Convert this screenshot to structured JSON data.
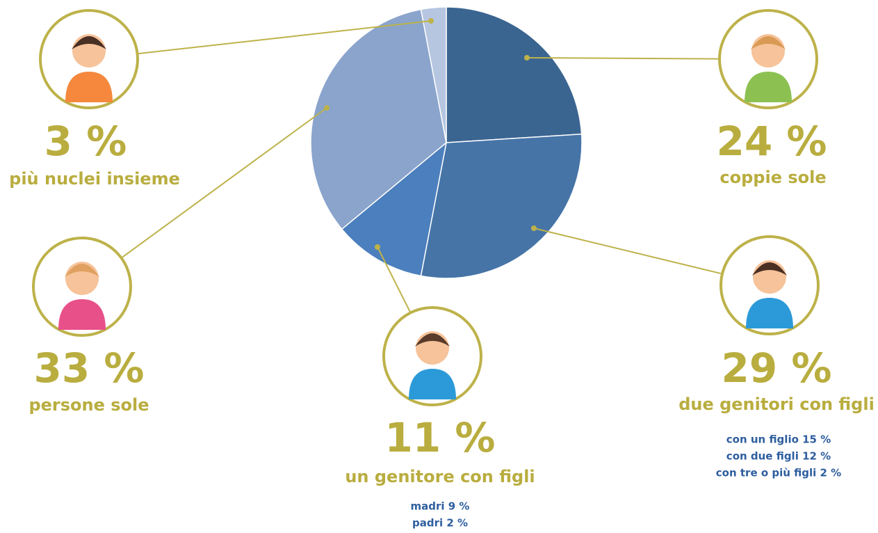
{
  "chart_data": {
    "type": "pie",
    "categories": [
      "coppie sole",
      "due genitori con figli",
      "un genitore con figli",
      "persone sole",
      "più nuclei insieme"
    ],
    "values": [
      24,
      29,
      11,
      33,
      3
    ],
    "value_labels": [
      "24 %",
      "29 %",
      "11 %",
      "33 %",
      "3 %"
    ],
    "colors": [
      "#3b6591",
      "#4674a7",
      "#4c7fbd",
      "#8aa4cc",
      "#b6c6e1"
    ],
    "value_details": [
      null,
      [
        "con un figlio 15 %",
        "con due figli 12 %",
        "con tre o più figli 2 %"
      ],
      [
        "madri 9 %",
        "padri 2 %"
      ],
      null,
      null
    ]
  }
}
